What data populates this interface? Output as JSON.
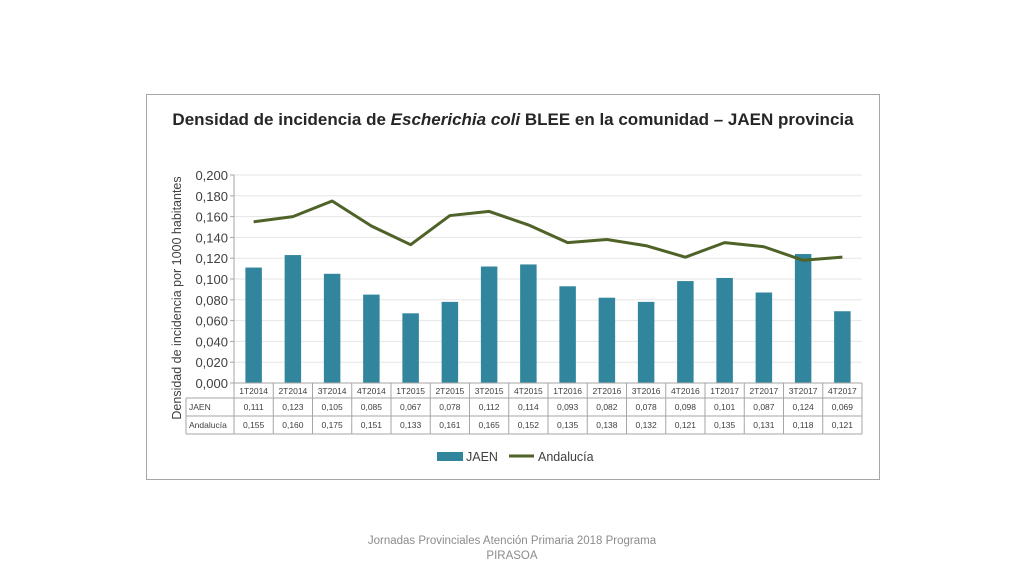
{
  "slide": {
    "footer": "Jornadas Provinciales Atención Primaria 2018  Programa PIRASOA"
  },
  "chart_data": {
    "type": "bar",
    "title_parts": [
      "Densidad de incidencia de ",
      "Escherichia coli",
      " BLEE en la comunidad – JAEN provincia"
    ],
    "ylabel": "Densidad de incidencia por 1000 habitantes",
    "xlabel": "",
    "ylim": [
      0,
      0.2
    ],
    "yticks": [
      "0,000",
      "0,020",
      "0,040",
      "0,060",
      "0,080",
      "0,100",
      "0,120",
      "0,140",
      "0,160",
      "0,180",
      "0,200"
    ],
    "categories": [
      "1T2014",
      "2T2014",
      "3T2014",
      "4T2014",
      "1T2015",
      "2T2015",
      "3T2015",
      "4T2015",
      "1T2016",
      "2T2016",
      "3T2016",
      "4T2016",
      "1T2017",
      "2T2017",
      "3T2017",
      "4T2017"
    ],
    "series": [
      {
        "name": "JAEN",
        "type": "bar",
        "color": "#31859c",
        "values": [
          0.111,
          0.123,
          0.105,
          0.085,
          0.067,
          0.078,
          0.112,
          0.114,
          0.093,
          0.082,
          0.078,
          0.098,
          0.101,
          0.087,
          0.124,
          0.069
        ],
        "labels": [
          "0,111",
          "0,123",
          "0,105",
          "0,085",
          "0,067",
          "0,078",
          "0,112",
          "0,114",
          "0,093",
          "0,082",
          "0,078",
          "0,098",
          "0,101",
          "0,087",
          "0,124",
          "0,069"
        ]
      },
      {
        "name": "Andalucía",
        "type": "line",
        "color": "#4f6228",
        "values": [
          0.155,
          0.16,
          0.175,
          0.151,
          0.133,
          0.161,
          0.165,
          0.152,
          0.135,
          0.138,
          0.132,
          0.121,
          0.135,
          0.131,
          0.118,
          0.121
        ],
        "labels": [
          "0,155",
          "0,160",
          "0,175",
          "0,151",
          "0,133",
          "0,161",
          "0,165",
          "0,152",
          "0,135",
          "0,138",
          "0,132",
          "0,121",
          "0,135",
          "0,131",
          "0,118",
          "0,121"
        ]
      }
    ],
    "grid": true,
    "legend": "bottom",
    "data_table": true
  }
}
